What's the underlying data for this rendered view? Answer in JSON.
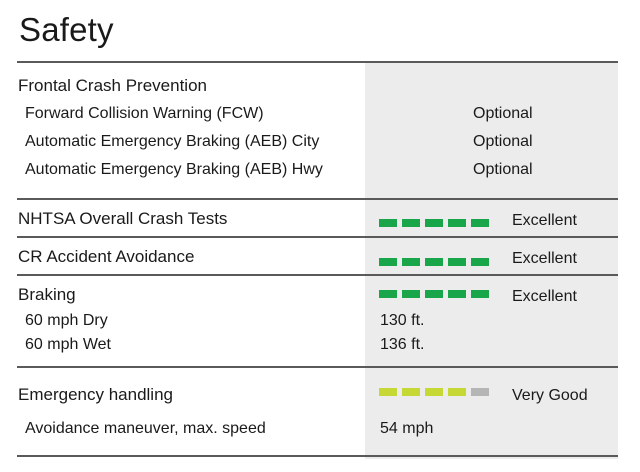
{
  "title": "Safety",
  "colors": {
    "excellent_bar": "#19a64a",
    "very_good_bar": "#c5d835",
    "empty_bar": "#b5b5b5",
    "shade": "#ececec"
  },
  "frontal": {
    "heading": "Frontal Crash Prevention",
    "rows": [
      {
        "label": "Forward Collision Warning (FCW)",
        "value": "Optional"
      },
      {
        "label": "Automatic Emergency Braking (AEB) City",
        "value": "Optional"
      },
      {
        "label": "Automatic Emergency Braking (AEB) Hwy",
        "value": "Optional"
      }
    ]
  },
  "nhtsa": {
    "label": "NHTSA Overall Crash Tests",
    "rating": "Excellent",
    "score": 5,
    "max": 5
  },
  "accident": {
    "label": "CR Accident Avoidance",
    "rating": "Excellent",
    "score": 5,
    "max": 5
  },
  "braking": {
    "label": "Braking",
    "rating": "Excellent",
    "score": 5,
    "max": 5,
    "rows": [
      {
        "label": "60 mph Dry",
        "value": "130 ft."
      },
      {
        "label": "60 mph Wet",
        "value": "136 ft."
      }
    ]
  },
  "emergency": {
    "label": "Emergency handling",
    "rating": "Very Good",
    "score": 4,
    "max": 5,
    "rows": [
      {
        "label": "Avoidance maneuver, max. speed",
        "value": "54 mph"
      }
    ]
  }
}
